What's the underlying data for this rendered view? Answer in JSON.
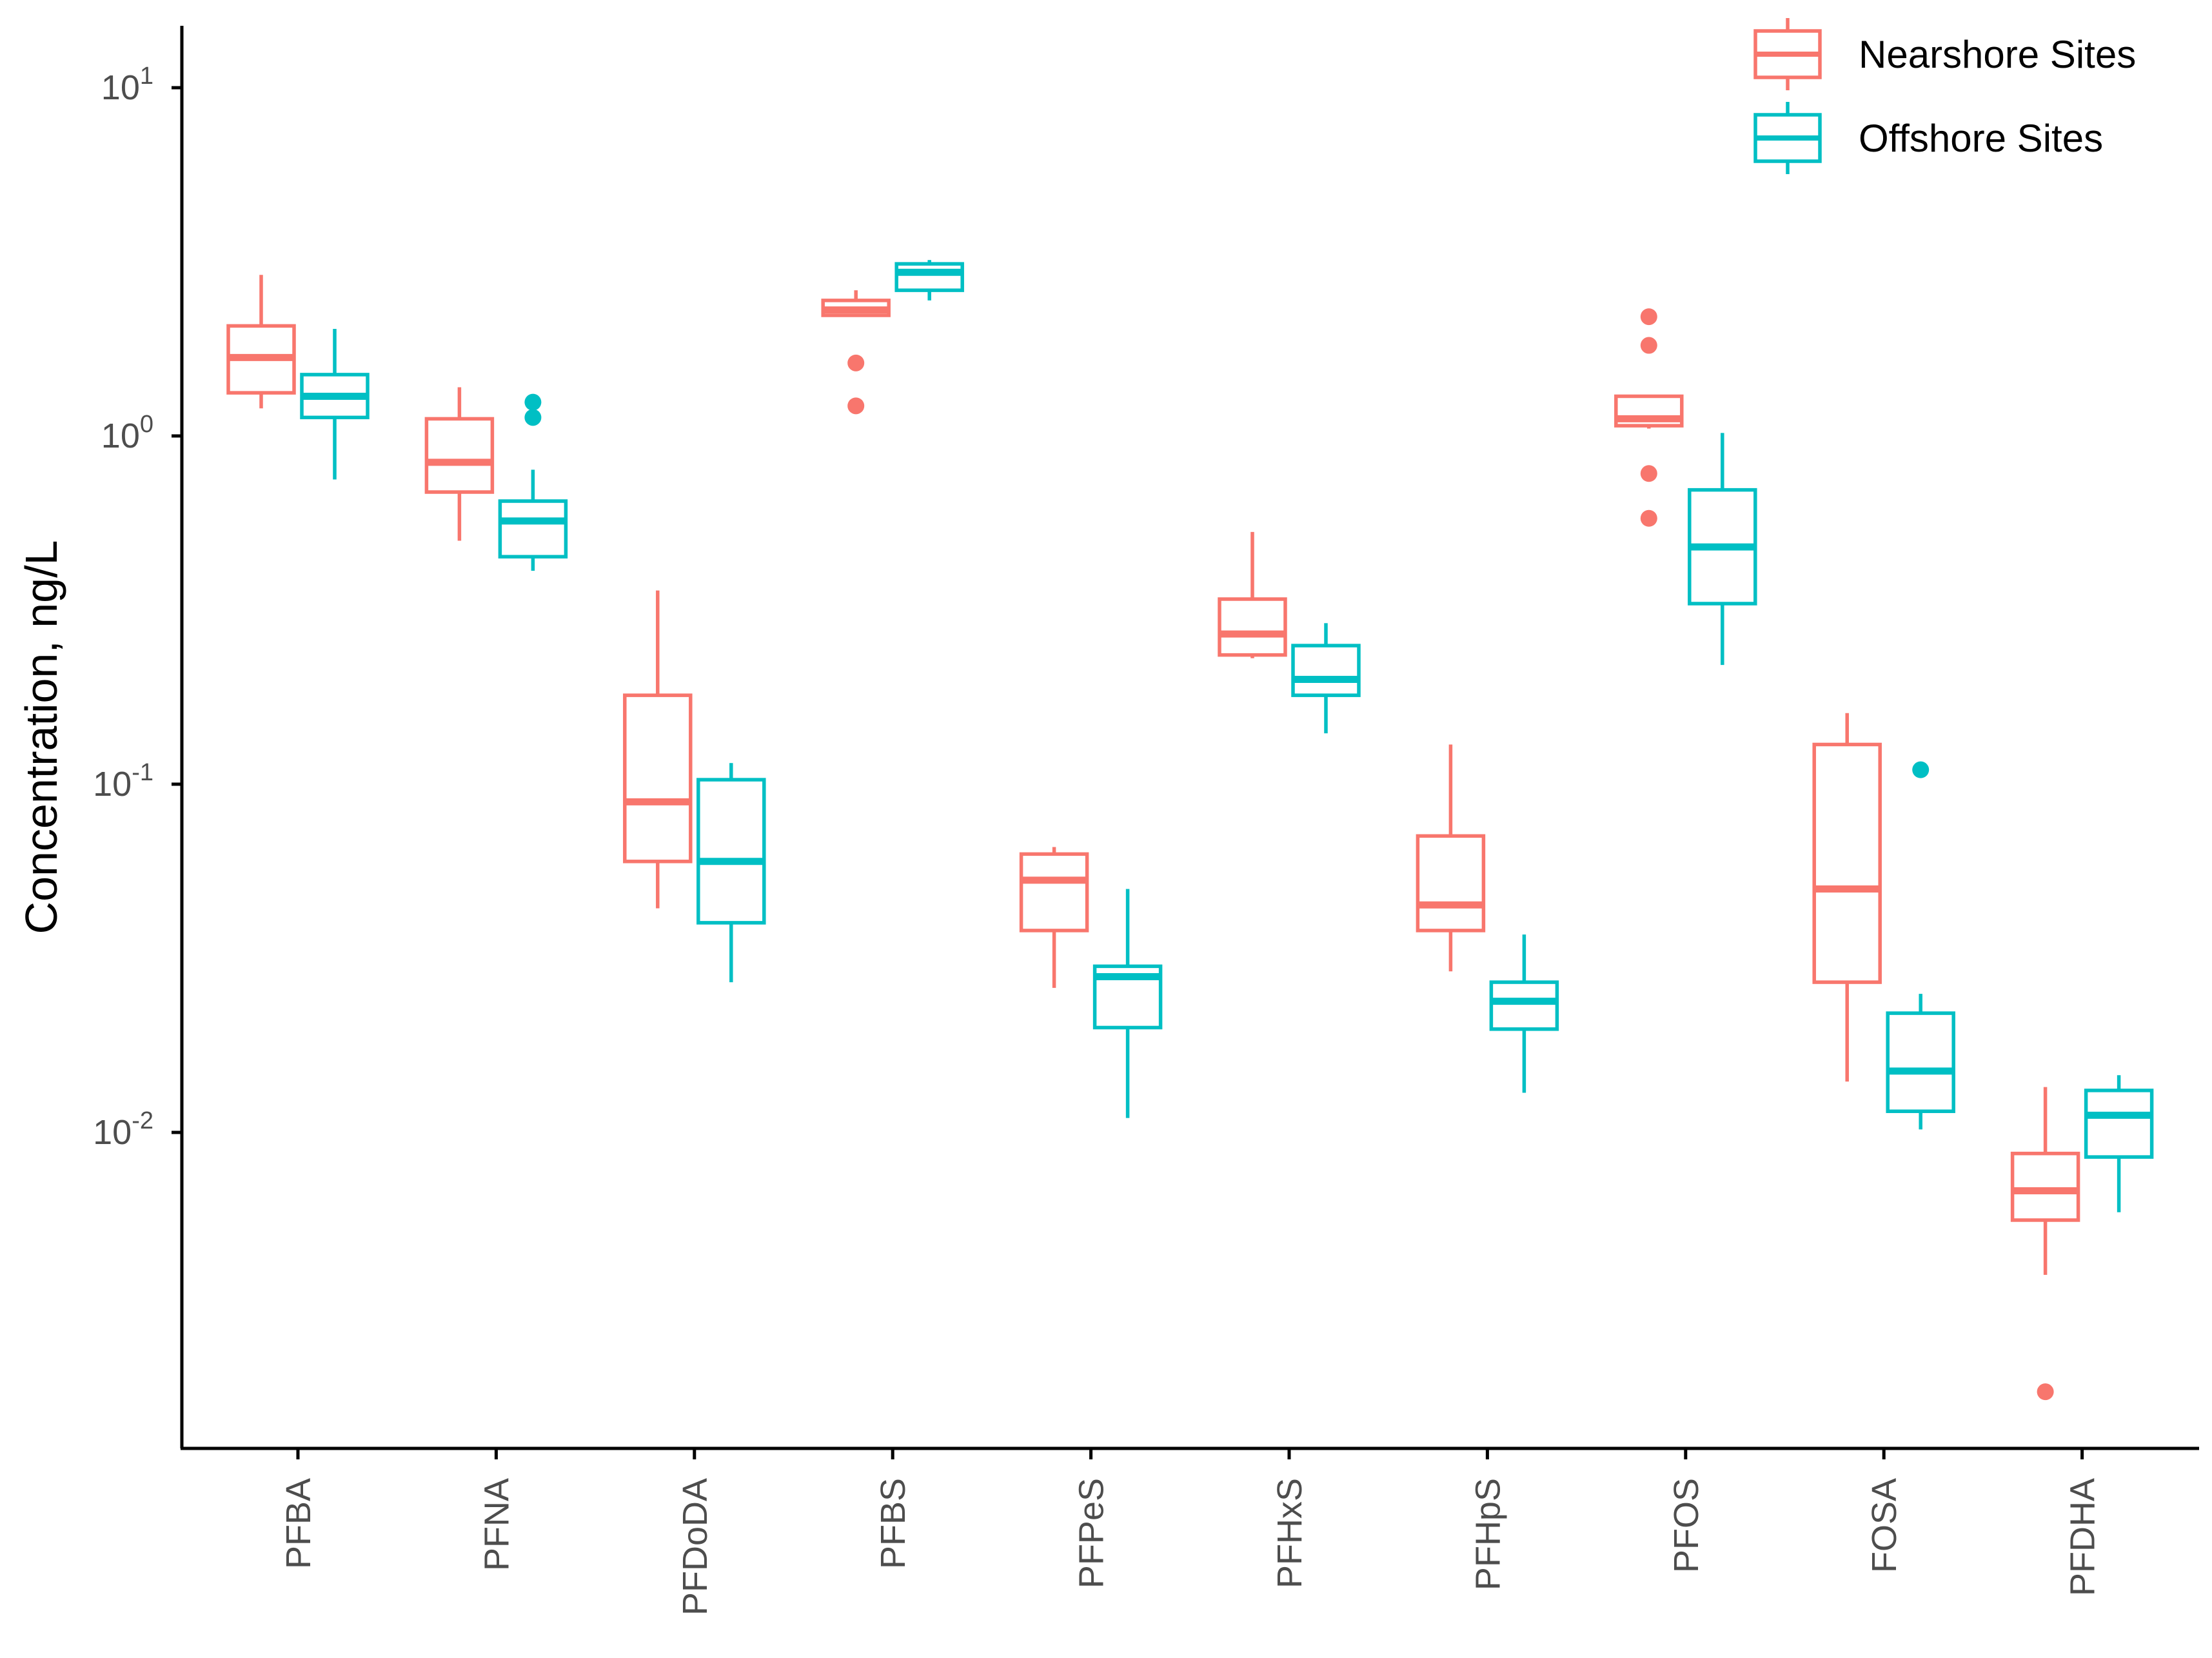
{
  "chart_data": {
    "type": "box",
    "title": "",
    "xlabel": "",
    "ylabel": "Concentration, ng/L",
    "y_scale": "log10",
    "ylim": [
      0.0012,
      15
    ],
    "y_ticks": [
      {
        "value": 10,
        "mantissa": "10",
        "exponent": "1"
      },
      {
        "value": 1,
        "mantissa": "10",
        "exponent": "0"
      },
      {
        "value": 0.1,
        "mantissa": "10",
        "exponent": "-1"
      },
      {
        "value": 0.01,
        "mantissa": "10",
        "exponent": "-2"
      }
    ],
    "grid": false,
    "legend_position": "top-right",
    "categories": [
      "PFBA",
      "PFNA",
      "PFDoDA",
      "PFBS",
      "PFPeS",
      "PFHxS",
      "PFHpS",
      "PFOS",
      "FOSA",
      "PFDHA"
    ],
    "series": [
      {
        "name": "Nearshore Sites",
        "color": "#F8766D",
        "boxes": [
          {
            "min": 1.2,
            "q1": 1.33,
            "median": 1.68,
            "q3": 2.07,
            "max": 2.9,
            "outliers": []
          },
          {
            "min": 0.5,
            "q1": 0.69,
            "median": 0.84,
            "q3": 1.12,
            "max": 1.38,
            "outliers": []
          },
          {
            "min": 0.044,
            "q1": 0.06,
            "median": 0.089,
            "q3": 0.18,
            "max": 0.36,
            "outliers": []
          },
          {
            "min": 2.2,
            "q1": 2.22,
            "median": 2.3,
            "q3": 2.45,
            "max": 2.62,
            "outliers": [
              1.22,
              1.62
            ]
          },
          {
            "min": 0.026,
            "q1": 0.038,
            "median": 0.053,
            "q3": 0.063,
            "max": 0.066,
            "outliers": []
          },
          {
            "min": 0.23,
            "q1": 0.235,
            "median": 0.27,
            "q3": 0.34,
            "max": 0.53,
            "outliers": []
          },
          {
            "min": 0.029,
            "q1": 0.038,
            "median": 0.045,
            "q3": 0.071,
            "max": 0.13,
            "outliers": []
          },
          {
            "min": 1.05,
            "q1": 1.07,
            "median": 1.12,
            "q3": 1.3,
            "max": 1.31,
            "outliers": [
              0.58,
              0.78,
              1.82,
              2.2
            ]
          },
          {
            "min": 0.014,
            "q1": 0.027,
            "median": 0.05,
            "q3": 0.13,
            "max": 0.16,
            "outliers": []
          },
          {
            "min": 0.0039,
            "q1": 0.0056,
            "median": 0.0068,
            "q3": 0.0087,
            "max": 0.0135,
            "outliers": [
              0.0018
            ]
          }
        ]
      },
      {
        "name": "Offshore Sites",
        "color": "#00BFC4",
        "boxes": [
          {
            "min": 0.75,
            "q1": 1.13,
            "median": 1.3,
            "q3": 1.5,
            "max": 2.03,
            "outliers": []
          },
          {
            "min": 0.41,
            "q1": 0.45,
            "median": 0.57,
            "q3": 0.65,
            "max": 0.8,
            "outliers": [
              1.13,
              1.25
            ]
          },
          {
            "min": 0.027,
            "q1": 0.04,
            "median": 0.06,
            "q3": 0.103,
            "max": 0.115,
            "outliers": []
          },
          {
            "min": 2.45,
            "q1": 2.62,
            "median": 2.95,
            "q3": 3.12,
            "max": 3.2,
            "outliers": []
          },
          {
            "min": 0.011,
            "q1": 0.02,
            "median": 0.028,
            "q3": 0.03,
            "max": 0.05,
            "outliers": []
          },
          {
            "min": 0.14,
            "q1": 0.18,
            "median": 0.2,
            "q3": 0.25,
            "max": 0.29,
            "outliers": []
          },
          {
            "min": 0.013,
            "q1": 0.0198,
            "median": 0.0238,
            "q3": 0.027,
            "max": 0.037,
            "outliers": []
          },
          {
            "min": 0.22,
            "q1": 0.33,
            "median": 0.48,
            "q3": 0.7,
            "max": 1.02,
            "outliers": []
          },
          {
            "min": 0.0102,
            "q1": 0.0115,
            "median": 0.015,
            "q3": 0.022,
            "max": 0.025,
            "outliers": [
              0.11
            ]
          },
          {
            "min": 0.0059,
            "q1": 0.0085,
            "median": 0.0112,
            "q3": 0.0132,
            "max": 0.0146,
            "outliers": []
          }
        ]
      }
    ]
  }
}
